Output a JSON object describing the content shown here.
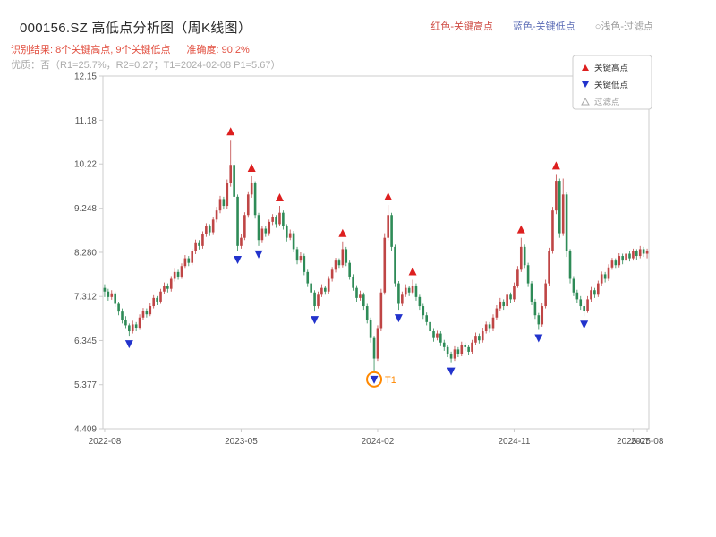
{
  "header": {
    "title": "000156.SZ 高低点分析图（周K线图）",
    "legend_items": [
      {
        "label": "红色-关键高点",
        "color": "#cf4c44"
      },
      {
        "label": "蓝色-关键低点",
        "color": "#5a6bb5"
      },
      {
        "label": "○浅色-过滤点",
        "color": "#9a9a9a"
      }
    ],
    "result_text": "识别结果: 8个关键高点, 9个关键低点",
    "accuracy_text": "准确度: 90.2%",
    "quality_line": "优质：否（R1=25.7%，R2=0.27；T1=2024-02-08 P1=5.67）"
  },
  "chart_data": {
    "type": "candlestick",
    "title": "000156.SZ weekly K-line with key high/low markers",
    "ylim": [
      4.409,
      12.15
    ],
    "y_ticks": [
      "12.15",
      "11.18",
      "10.22",
      "9.248",
      "8.280",
      "7.312",
      "6.345",
      "5.377",
      "4.409"
    ],
    "x_ticks": [
      {
        "pos": 0,
        "label": "2022-08"
      },
      {
        "pos": 39,
        "label": "2023-05"
      },
      {
        "pos": 78,
        "label": "2024-02"
      },
      {
        "pos": 117,
        "label": "2024-11"
      },
      {
        "pos": 151,
        "label": "2025-07"
      },
      {
        "pos": 155,
        "label": "2025-08"
      }
    ],
    "colors": {
      "up": "#bf4545",
      "down": "#2e8b57",
      "high_marker": "#dd1f1f",
      "low_marker": "#2233cc",
      "t1": "#ff8800",
      "spine": "#cccccc",
      "tick_text": "#555555"
    },
    "legend": [
      {
        "label": "关键高点",
        "shape": "up",
        "color": "#dd1f1f",
        "fill": true,
        "text_color": "#333333",
        "icon": "legend-key-high-icon"
      },
      {
        "label": "关键低点",
        "shape": "down",
        "color": "#2233cc",
        "fill": true,
        "text_color": "#333333",
        "icon": "legend-key-low-icon"
      },
      {
        "label": "过滤点",
        "shape": "up",
        "color": "#aaaaaa",
        "fill": false,
        "text_color": "#999999",
        "icon": "legend-filtered-icon"
      }
    ],
    "key_high_weeks": [
      36,
      42,
      50,
      68,
      81,
      88,
      119,
      129
    ],
    "key_low_weeks": [
      7,
      38,
      44,
      60,
      77,
      84,
      99,
      124,
      137
    ],
    "t1": {
      "week": 77,
      "label": "T1",
      "date": "2024-02-08",
      "price": 5.67
    },
    "candles": [
      [
        7.5,
        7.58,
        7.3,
        7.42
      ],
      [
        7.42,
        7.48,
        7.22,
        7.3
      ],
      [
        7.3,
        7.45,
        7.24,
        7.38
      ],
      [
        7.38,
        7.42,
        7.08,
        7.15
      ],
      [
        7.15,
        7.2,
        6.9,
        6.98
      ],
      [
        6.98,
        7.05,
        6.72,
        6.8
      ],
      [
        6.8,
        6.88,
        6.6,
        6.68
      ],
      [
        6.68,
        6.72,
        6.45,
        6.55
      ],
      [
        6.55,
        6.78,
        6.5,
        6.7
      ],
      [
        6.7,
        6.75,
        6.55,
        6.62
      ],
      [
        6.62,
        6.92,
        6.58,
        6.85
      ],
      [
        6.85,
        7.06,
        6.8,
        7.0
      ],
      [
        7.0,
        7.05,
        6.85,
        6.92
      ],
      [
        6.92,
        7.16,
        6.88,
        7.1
      ],
      [
        7.1,
        7.34,
        7.05,
        7.28
      ],
      [
        7.28,
        7.32,
        7.12,
        7.2
      ],
      [
        7.2,
        7.48,
        7.15,
        7.42
      ],
      [
        7.42,
        7.62,
        7.36,
        7.55
      ],
      [
        7.55,
        7.6,
        7.4,
        7.48
      ],
      [
        7.48,
        7.76,
        7.42,
        7.7
      ],
      [
        7.7,
        7.92,
        7.64,
        7.85
      ],
      [
        7.85,
        7.9,
        7.68,
        7.75
      ],
      [
        7.75,
        8.04,
        7.7,
        7.98
      ],
      [
        7.98,
        8.22,
        7.92,
        8.15
      ],
      [
        8.15,
        8.2,
        7.98,
        8.05
      ],
      [
        8.05,
        8.36,
        8.0,
        8.3
      ],
      [
        8.3,
        8.56,
        8.24,
        8.5
      ],
      [
        8.5,
        8.55,
        8.34,
        8.42
      ],
      [
        8.42,
        8.74,
        8.36,
        8.68
      ],
      [
        8.68,
        8.92,
        8.62,
        8.85
      ],
      [
        8.85,
        8.9,
        8.64,
        8.72
      ],
      [
        8.72,
        9.06,
        8.66,
        9.0
      ],
      [
        9.0,
        9.28,
        8.94,
        9.2
      ],
      [
        9.2,
        9.52,
        9.14,
        9.45
      ],
      [
        9.45,
        9.5,
        9.22,
        9.3
      ],
      [
        9.3,
        9.88,
        9.24,
        9.8
      ],
      [
        9.8,
        10.75,
        9.72,
        10.2
      ],
      [
        10.2,
        10.28,
        9.42,
        9.5
      ],
      [
        9.5,
        9.55,
        8.3,
        8.42
      ],
      [
        8.42,
        8.68,
        8.36,
        8.6
      ],
      [
        8.6,
        9.16,
        8.55,
        9.1
      ],
      [
        9.1,
        9.62,
        9.04,
        9.55
      ],
      [
        9.55,
        9.95,
        9.48,
        9.8
      ],
      [
        9.8,
        9.84,
        9.02,
        9.1
      ],
      [
        9.1,
        9.15,
        8.42,
        8.55
      ],
      [
        8.55,
        8.86,
        8.5,
        8.8
      ],
      [
        8.8,
        8.85,
        8.62,
        8.7
      ],
      [
        8.7,
        9.0,
        8.64,
        8.95
      ],
      [
        8.95,
        9.12,
        8.88,
        9.05
      ],
      [
        9.05,
        9.1,
        8.82,
        8.9
      ],
      [
        8.9,
        9.3,
        8.85,
        9.15
      ],
      [
        9.15,
        9.2,
        8.78,
        8.85
      ],
      [
        8.85,
        8.9,
        8.52,
        8.6
      ],
      [
        8.6,
        8.78,
        8.55,
        8.7
      ],
      [
        8.7,
        8.75,
        8.28,
        8.35
      ],
      [
        8.35,
        8.4,
        8.02,
        8.1
      ],
      [
        8.1,
        8.28,
        8.05,
        8.2
      ],
      [
        8.2,
        8.25,
        7.78,
        7.85
      ],
      [
        7.85,
        7.9,
        7.52,
        7.6
      ],
      [
        7.6,
        7.66,
        7.32,
        7.4
      ],
      [
        7.4,
        7.45,
        6.98,
        7.1
      ],
      [
        7.1,
        7.42,
        7.05,
        7.35
      ],
      [
        7.35,
        7.58,
        7.3,
        7.5
      ],
      [
        7.5,
        7.55,
        7.35,
        7.42
      ],
      [
        7.42,
        7.76,
        7.36,
        7.7
      ],
      [
        7.7,
        7.96,
        7.64,
        7.9
      ],
      [
        7.9,
        8.16,
        7.84,
        8.1
      ],
      [
        8.1,
        8.15,
        7.92,
        8.0
      ],
      [
        8.0,
        8.52,
        7.95,
        8.35
      ],
      [
        8.35,
        8.4,
        7.98,
        8.05
      ],
      [
        8.05,
        8.1,
        7.68,
        7.75
      ],
      [
        7.75,
        7.8,
        7.44,
        7.5
      ],
      [
        7.5,
        7.56,
        7.2,
        7.28
      ],
      [
        7.28,
        7.44,
        7.22,
        7.35
      ],
      [
        7.35,
        7.4,
        7.02,
        7.1
      ],
      [
        7.1,
        7.15,
        6.72,
        6.8
      ],
      [
        6.8,
        6.85,
        6.3,
        6.4
      ],
      [
        6.4,
        6.45,
        5.67,
        5.95
      ],
      [
        5.95,
        6.68,
        5.9,
        6.6
      ],
      [
        6.6,
        7.48,
        6.55,
        7.4
      ],
      [
        7.4,
        8.7,
        7.35,
        8.6
      ],
      [
        8.6,
        9.32,
        8.54,
        9.1
      ],
      [
        9.1,
        9.15,
        8.3,
        8.4
      ],
      [
        8.4,
        8.45,
        7.52,
        7.6
      ],
      [
        7.6,
        7.65,
        7.02,
        7.15
      ],
      [
        7.15,
        7.42,
        7.1,
        7.35
      ],
      [
        7.35,
        7.58,
        7.3,
        7.5
      ],
      [
        7.5,
        7.55,
        7.32,
        7.4
      ],
      [
        7.4,
        7.68,
        7.35,
        7.55
      ],
      [
        7.55,
        7.6,
        7.22,
        7.3
      ],
      [
        7.3,
        7.35,
        7.02,
        7.1
      ],
      [
        7.1,
        7.15,
        6.82,
        6.9
      ],
      [
        6.9,
        6.96,
        6.68,
        6.75
      ],
      [
        6.75,
        6.8,
        6.48,
        6.55
      ],
      [
        6.55,
        6.6,
        6.32,
        6.4
      ],
      [
        6.4,
        6.56,
        6.35,
        6.5
      ],
      [
        6.5,
        6.55,
        6.22,
        6.3
      ],
      [
        6.3,
        6.36,
        6.12,
        6.2
      ],
      [
        6.2,
        6.25,
        5.98,
        6.05
      ],
      [
        6.05,
        6.1,
        5.85,
        5.95
      ],
      [
        5.95,
        6.22,
        5.9,
        6.15
      ],
      [
        6.15,
        6.2,
        5.98,
        6.05
      ],
      [
        6.05,
        6.32,
        6.0,
        6.25
      ],
      [
        6.25,
        6.3,
        6.12,
        6.2
      ],
      [
        6.2,
        6.25,
        6.02,
        6.1
      ],
      [
        6.1,
        6.36,
        6.05,
        6.3
      ],
      [
        6.3,
        6.52,
        6.25,
        6.45
      ],
      [
        6.45,
        6.5,
        6.28,
        6.35
      ],
      [
        6.35,
        6.62,
        6.3,
        6.55
      ],
      [
        6.55,
        6.76,
        6.5,
        6.7
      ],
      [
        6.7,
        6.75,
        6.52,
        6.6
      ],
      [
        6.6,
        6.92,
        6.55,
        6.85
      ],
      [
        6.85,
        7.12,
        6.8,
        7.05
      ],
      [
        7.05,
        7.28,
        7.0,
        7.2
      ],
      [
        7.2,
        7.25,
        7.02,
        7.1
      ],
      [
        7.1,
        7.42,
        7.05,
        7.35
      ],
      [
        7.35,
        7.4,
        7.16,
        7.25
      ],
      [
        7.25,
        7.62,
        7.2,
        7.55
      ],
      [
        7.55,
        7.98,
        7.5,
        7.9
      ],
      [
        7.9,
        8.6,
        7.85,
        8.4
      ],
      [
        8.4,
        8.45,
        7.92,
        8.0
      ],
      [
        8.0,
        8.05,
        7.52,
        7.6
      ],
      [
        7.6,
        7.65,
        7.12,
        7.2
      ],
      [
        7.2,
        7.26,
        6.82,
        6.9
      ],
      [
        6.9,
        6.95,
        6.58,
        6.7
      ],
      [
        6.7,
        7.18,
        6.65,
        7.1
      ],
      [
        7.1,
        7.68,
        7.05,
        7.6
      ],
      [
        7.6,
        8.38,
        7.55,
        8.3
      ],
      [
        8.3,
        9.28,
        8.25,
        9.2
      ],
      [
        9.2,
        10.0,
        9.12,
        9.85
      ],
      [
        9.85,
        9.9,
        8.6,
        8.7
      ],
      [
        8.7,
        9.9,
        8.64,
        9.55
      ],
      [
        9.55,
        9.6,
        8.18,
        8.3
      ],
      [
        8.3,
        8.35,
        7.6,
        7.7
      ],
      [
        7.7,
        7.76,
        7.32,
        7.4
      ],
      [
        7.4,
        7.46,
        7.16,
        7.25
      ],
      [
        7.25,
        7.32,
        7.02,
        7.1
      ],
      [
        7.1,
        7.15,
        6.88,
        7.0
      ],
      [
        7.0,
        7.32,
        6.95,
        7.25
      ],
      [
        7.25,
        7.52,
        7.2,
        7.45
      ],
      [
        7.45,
        7.5,
        7.28,
        7.35
      ],
      [
        7.35,
        7.66,
        7.3,
        7.6
      ],
      [
        7.6,
        7.86,
        7.55,
        7.8
      ],
      [
        7.8,
        7.85,
        7.62,
        7.7
      ],
      [
        7.7,
        8.02,
        7.65,
        7.95
      ],
      [
        7.95,
        8.16,
        7.9,
        8.1
      ],
      [
        8.1,
        8.15,
        7.92,
        8.0
      ],
      [
        8.0,
        8.26,
        7.95,
        8.2
      ],
      [
        8.2,
        8.25,
        8.02,
        8.1
      ],
      [
        8.1,
        8.32,
        8.05,
        8.25
      ],
      [
        8.25,
        8.3,
        8.08,
        8.15
      ],
      [
        8.15,
        8.36,
        8.1,
        8.3
      ],
      [
        8.3,
        8.35,
        8.12,
        8.2
      ],
      [
        8.2,
        8.42,
        8.15,
        8.35
      ],
      [
        8.35,
        8.4,
        8.18,
        8.25
      ],
      [
        8.25,
        8.36,
        8.15,
        8.3
      ]
    ]
  }
}
